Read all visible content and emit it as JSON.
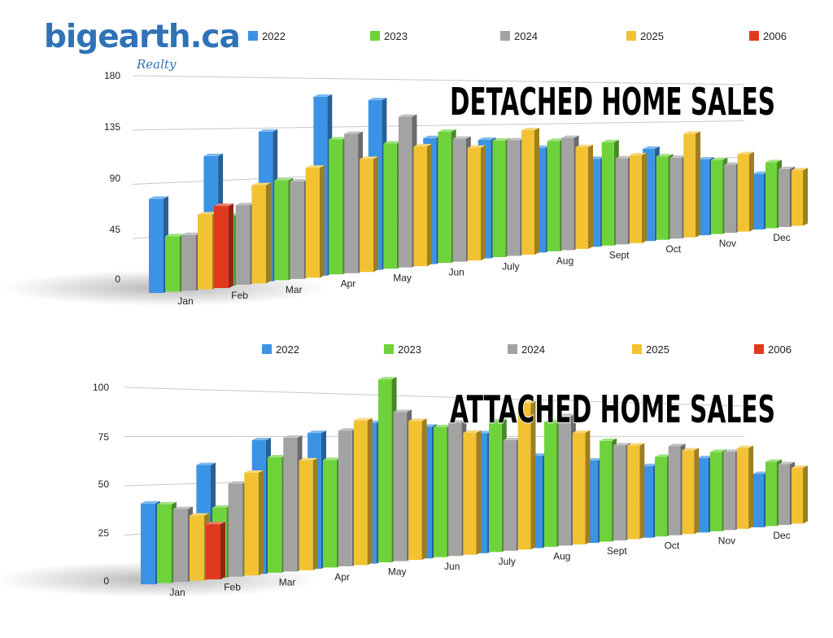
{
  "logo": {
    "text": "bigearth.ca",
    "sub": "Realty"
  },
  "colors": {
    "2022": "#3b93e6",
    "2023": "#6ed33b",
    "2024": "#a3a3a3",
    "2025": "#f2c232",
    "2006": "#e03a1e"
  },
  "chart_data": [
    {
      "type": "bar",
      "title": "DETACHED HOME SALES",
      "categories": [
        "Jan",
        "Feb",
        "Mar",
        "Apr",
        "May",
        "Jun",
        "July",
        "Aug",
        "Sept",
        "Oct",
        "Nov",
        "Dec"
      ],
      "ylim": [
        0,
        180
      ],
      "yticks": [
        0,
        45,
        90,
        135,
        180
      ],
      "legend_position": "top",
      "grid": true,
      "series": [
        {
          "name": "2022",
          "values": [
            78,
            112,
            132,
            163,
            160,
            123,
            120,
            110,
            96,
            105,
            90,
            69
          ]
        },
        {
          "name": "2023",
          "values": [
            46,
            60,
            88,
            123,
            118,
            128,
            118,
            116,
            113,
            95,
            88,
            82
          ]
        },
        {
          "name": "2024",
          "values": [
            46,
            68,
            86,
            127,
            142,
            120,
            117,
            118,
            94,
            92,
            81,
            72
          ]
        },
        {
          "name": "2025",
          "values": [
            62,
            84,
            97,
            103,
            113,
            110,
            126,
            107,
            96,
            118,
            92,
            69
          ]
        },
        {
          "name": "2006",
          "values": [
            68,
            null,
            null,
            null,
            null,
            null,
            null,
            null,
            null,
            null,
            null,
            null
          ]
        }
      ]
    },
    {
      "type": "bar",
      "title": "ATTACHED HOME SALES",
      "categories": [
        "Jan",
        "Feb",
        "Mar",
        "Apr",
        "May",
        "Jun",
        "July",
        "Aug",
        "Sept",
        "Oct",
        "Nov",
        "Dec"
      ],
      "ylim": [
        0,
        100
      ],
      "yticks": [
        0,
        25,
        50,
        75,
        100
      ],
      "legend_position": "top",
      "grid": true,
      "series": [
        {
          "name": "2022",
          "values": [
            41,
            60,
            73,
            77,
            83,
            81,
            77,
            62,
            58,
            53,
            58,
            44
          ]
        },
        {
          "name": "2023",
          "values": [
            40,
            37,
            63,
            61,
            108,
            80,
            84,
            84,
            71,
            59,
            62,
            53
          ]
        },
        {
          "name": "2024",
          "values": [
            37,
            49,
            73,
            77,
            88,
            82,
            71,
            87,
            67,
            66,
            61,
            50
          ]
        },
        {
          "name": "2025",
          "values": [
            33,
            54,
            60,
            82,
            82,
            75,
            94,
            75,
            66,
            62,
            63,
            46
          ]
        },
        {
          "name": "2006",
          "values": [
            28,
            null,
            null,
            null,
            null,
            null,
            null,
            null,
            null,
            null,
            null,
            null
          ]
        }
      ]
    }
  ]
}
